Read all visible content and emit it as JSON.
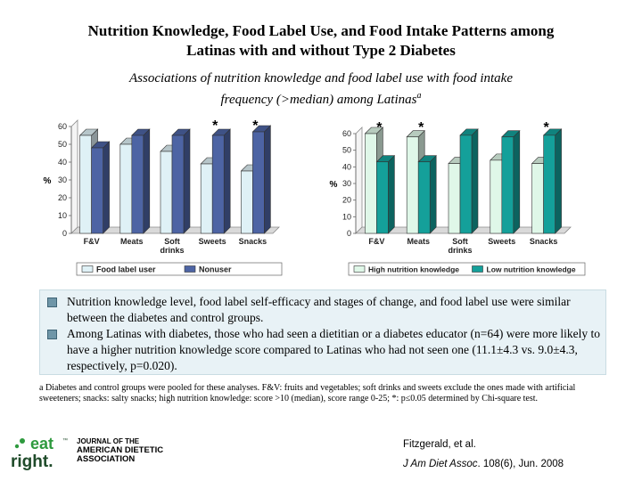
{
  "title_line1": "Nutrition Knowledge, Food Label Use, and Food Intake Patterns among",
  "title_line2": "Latinas with and without Type 2 Diabetes",
  "subtitle_line1": "Associations of nutrition knowledge and food label use with food intake",
  "subtitle_line2": "frequency (>median) among Latinas",
  "subtitle_sup": "a",
  "chart_data": [
    {
      "type": "bar",
      "categories": [
        "F&V",
        "Meats",
        "Soft drinks",
        "Sweets",
        "Snacks"
      ],
      "category_lines": [
        [
          "F&V"
        ],
        [
          "Meats"
        ],
        [
          "Soft",
          "drinks"
        ],
        [
          "Sweets"
        ],
        [
          "Snacks"
        ]
      ],
      "series": [
        {
          "name": "Food label user",
          "values": [
            55,
            50,
            46,
            39,
            35
          ],
          "color": "#dff1f6"
        },
        {
          "name": "Nonuser",
          "values": [
            48,
            55,
            55,
            55,
            57
          ],
          "color": "#4d64a4"
        }
      ],
      "ylabel": "%",
      "ylim": [
        0,
        60
      ],
      "yticks": [
        "0",
        "10",
        "20",
        "30",
        "40",
        "50",
        "60"
      ],
      "significant_marker": "*",
      "significant_categories": [
        3,
        4
      ],
      "legend_placement": "bottom"
    },
    {
      "type": "bar",
      "categories": [
        "F&V",
        "Meats",
        "Soft drinks",
        "Sweets",
        "Snacks"
      ],
      "category_lines": [
        [
          "F&V"
        ],
        [
          "Meats"
        ],
        [
          "Soft",
          "drinks"
        ],
        [
          "Sweets"
        ],
        [
          "Snacks"
        ]
      ],
      "series": [
        {
          "name": "High nutrition knowledge",
          "values": [
            60,
            58,
            42,
            44,
            42
          ],
          "color": "#dff7e8"
        },
        {
          "name": "Low nutrition knowledge",
          "values": [
            43,
            43,
            59,
            58,
            59
          ],
          "color": "#14a09a"
        }
      ],
      "ylabel": "%",
      "ylim": [
        0,
        60
      ],
      "yticks": [
        "0",
        "10",
        "20",
        "30",
        "40",
        "50",
        "60"
      ],
      "significant_marker": "*",
      "significant_categories": [
        0,
        1,
        4
      ],
      "legend_placement": "bottom"
    }
  ],
  "bullets": [
    "Nutrition knowledge level, food label self-efficacy and stages of change, and food label use were similar between the diabetes and control groups.",
    "Among Latinas with diabetes, those who had seen a dietitian or a diabetes educator (n=64) were more likely to have a higher nutrition knowledge score compared to Latinas who had not seen one (11.1±4.3 vs. 9.0±4.3, respectively, p=0.020)."
  ],
  "footnote": "a Diabetes and control groups were pooled for these analyses. F&V: fruits and vegetables; soft drinks and sweets exclude the ones made with artificial sweeteners; snacks: salty snacks; high nutrition knowledge: score >10 (median), score range 0-25; *: p≤0.05 determined by Chi-square test.",
  "logo": {
    "line1": "eat",
    "line2": "right.",
    "tm": "™",
    "green": "#2e9a3e",
    "dark": "#1f4b2a"
  },
  "journal": {
    "line1": "JOURNAL OF THE",
    "line2": "AMERICAN DIETETIC",
    "line3": "ASSOCIATION"
  },
  "citation": {
    "authors": "Fitzgerald, et al.",
    "journal": "J Am Diet Assoc",
    "details": ". 108(6), Jun. 2008"
  }
}
